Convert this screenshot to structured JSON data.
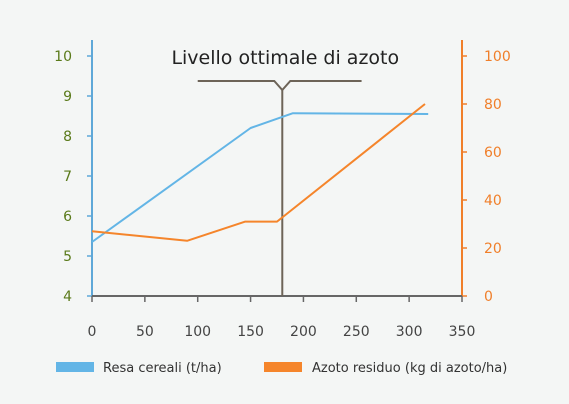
{
  "chart_data": {
    "type": "line",
    "annotation": "Livello ottimale di azoto",
    "annotation_x": 180,
    "annotation_bracket": [
      100,
      255
    ],
    "x_ticks": [
      0,
      50,
      100,
      150,
      200,
      250,
      300,
      350
    ],
    "xlim": [
      0,
      350
    ],
    "y_left": {
      "ticks": [
        4,
        5,
        6,
        7,
        8,
        9,
        10
      ],
      "ylim": [
        4,
        10
      ],
      "color": "#5a7a1a"
    },
    "y_right": {
      "ticks": [
        0,
        20,
        40,
        60,
        80,
        100
      ],
      "ylim": [
        0,
        100
      ],
      "color": "#f07f2a"
    },
    "series": [
      {
        "name": "Resa cereali (t/ha)",
        "axis": "left",
        "color": "#63b5e6",
        "x": [
          0,
          150,
          190,
          318
        ],
        "y": [
          5.35,
          8.2,
          8.57,
          8.55
        ]
      },
      {
        "name": "Azoto residuo (kg di azoto/ha)",
        "axis": "right",
        "color": "#f5852b",
        "x": [
          0,
          90,
          145,
          175,
          315
        ],
        "y": [
          27,
          23,
          31,
          31,
          80
        ]
      }
    ],
    "grid": false,
    "legend_position": "bottom"
  }
}
